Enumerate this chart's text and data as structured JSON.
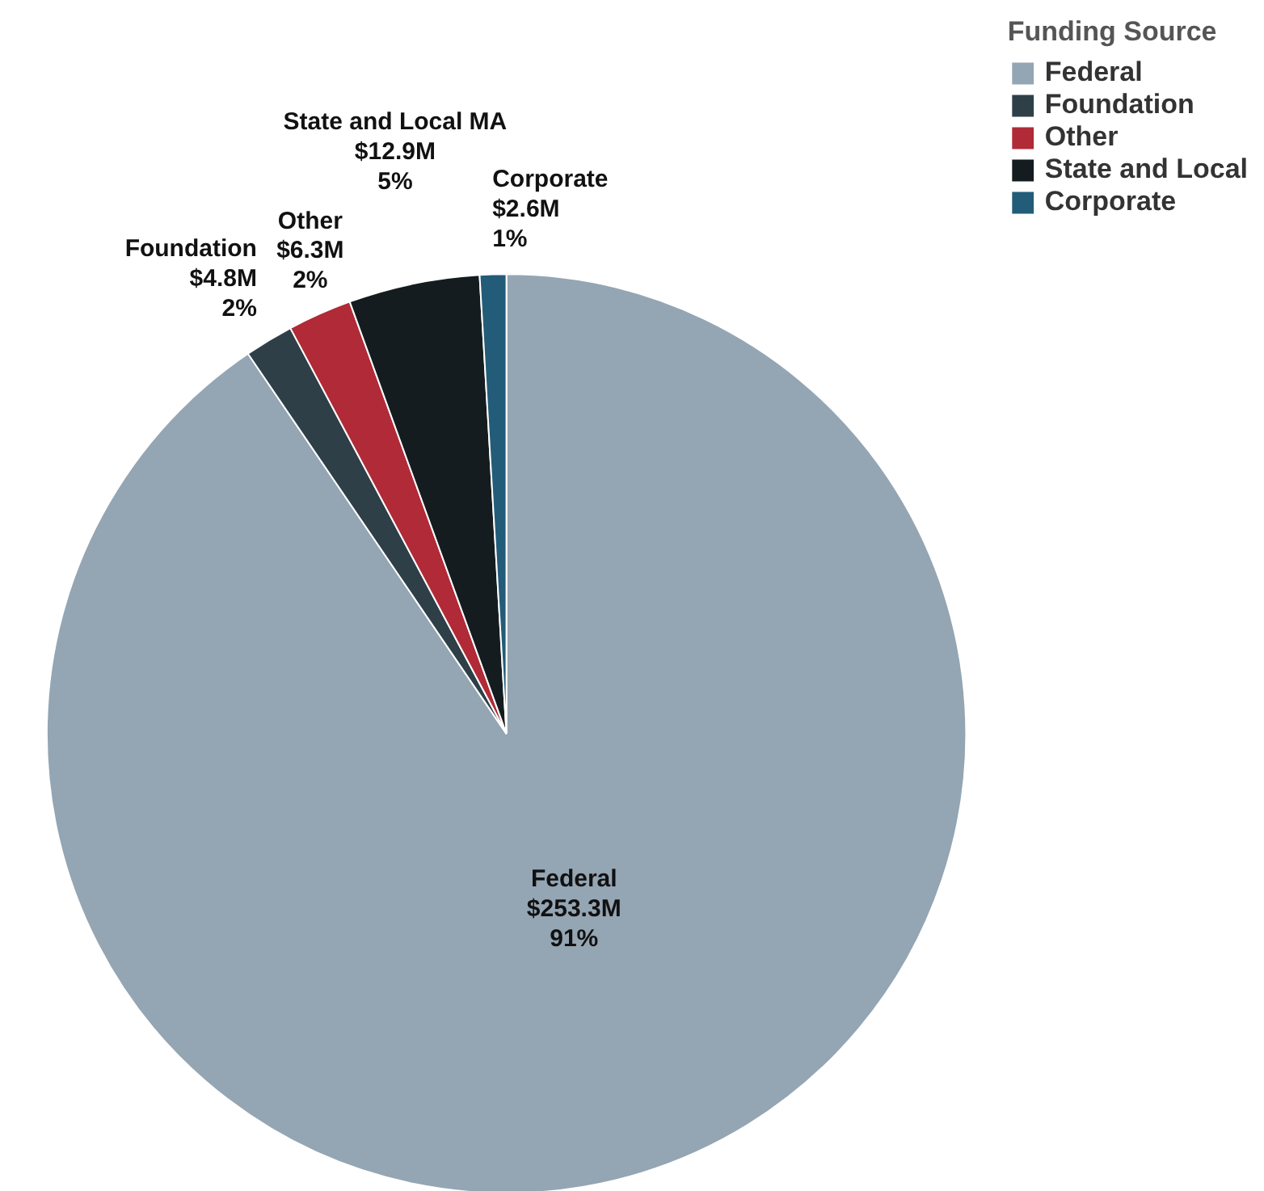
{
  "chart_data": {
    "type": "pie",
    "legend_title": "Funding Source",
    "legend": "top right",
    "categories": [
      "Federal",
      "Foundation",
      "Other",
      "State and Local",
      "Corporate"
    ],
    "values": [
      253.3,
      4.8,
      6.3,
      12.9,
      2.6
    ],
    "colors": [
      "#94a5b3",
      "#2e3f48",
      "#b12a37",
      "#141c1f",
      "#235c78"
    ],
    "value_labels": [
      "$253.3M",
      "$4.8M",
      "$6.3M",
      "$12.9M",
      "$2.6M"
    ],
    "annotations": [
      "Federal",
      "91%",
      "Foundation",
      "2%",
      "Other",
      "2%",
      "State and Local MA",
      "5%",
      "Corporate",
      "1%"
    ]
  }
}
